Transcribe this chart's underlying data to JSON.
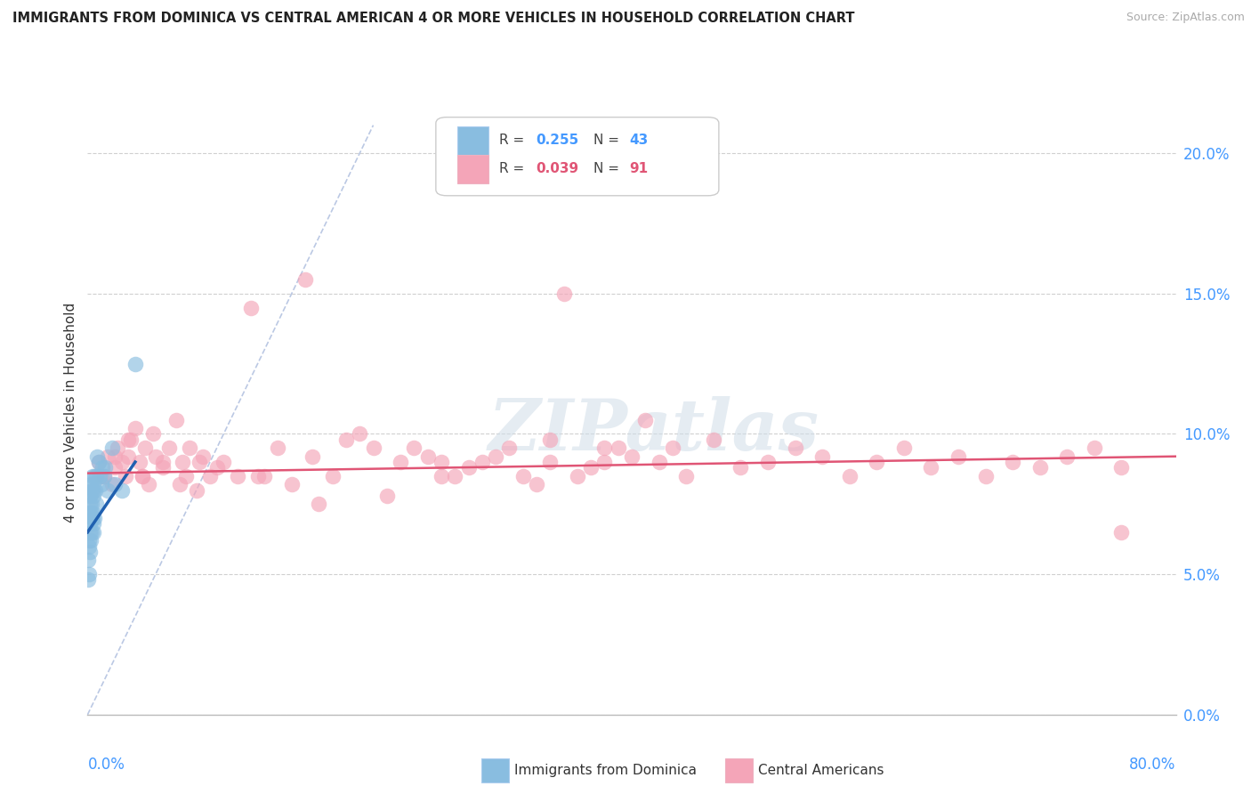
{
  "title": "IMMIGRANTS FROM DOMINICA VS CENTRAL AMERICAN 4 OR MORE VEHICLES IN HOUSEHOLD CORRELATION CHART",
  "source": "Source: ZipAtlas.com",
  "ylabel": "4 or more Vehicles in Household",
  "ytick_labels": [
    "0.0%",
    "5.0%",
    "10.0%",
    "15.0%",
    "20.0%"
  ],
  "ytick_values": [
    0.0,
    5.0,
    10.0,
    15.0,
    20.0
  ],
  "xlim": [
    0.0,
    80.0
  ],
  "ylim": [
    0.0,
    21.5
  ],
  "watermark": "ZIPatlas",
  "background_color": "#ffffff",
  "blue_color": "#89bde0",
  "pink_color": "#f4a5b8",
  "blue_line_color": "#2060b0",
  "pink_line_color": "#e05575",
  "dash_color": "#aabbdd",
  "dominica_x": [
    0.05,
    0.05,
    0.08,
    0.1,
    0.1,
    0.12,
    0.15,
    0.15,
    0.18,
    0.2,
    0.2,
    0.22,
    0.25,
    0.25,
    0.28,
    0.3,
    0.3,
    0.32,
    0.35,
    0.35,
    0.38,
    0.4,
    0.4,
    0.42,
    0.45,
    0.45,
    0.5,
    0.5,
    0.55,
    0.6,
    0.65,
    0.7,
    0.8,
    0.9,
    1.0,
    1.1,
    1.2,
    1.3,
    1.5,
    1.8,
    2.0,
    2.5,
    3.5
  ],
  "dominica_y": [
    5.5,
    4.8,
    6.2,
    5.0,
    7.2,
    6.0,
    6.5,
    7.5,
    5.8,
    6.8,
    7.8,
    6.2,
    7.2,
    8.2,
    7.0,
    8.0,
    6.5,
    7.5,
    8.5,
    7.0,
    7.2,
    8.2,
    6.8,
    7.8,
    8.0,
    6.5,
    8.5,
    7.0,
    8.0,
    8.5,
    7.5,
    9.2,
    9.0,
    8.5,
    8.2,
    8.8,
    8.5,
    8.8,
    8.0,
    9.5,
    8.2,
    8.0,
    12.5
  ],
  "central_x": [
    1.2,
    1.5,
    1.8,
    2.0,
    2.2,
    2.5,
    2.8,
    3.0,
    3.2,
    3.5,
    3.8,
    4.0,
    4.2,
    4.5,
    4.8,
    5.0,
    5.5,
    6.0,
    6.5,
    7.0,
    7.5,
    8.0,
    8.5,
    9.0,
    10.0,
    11.0,
    12.0,
    13.0,
    14.0,
    15.0,
    16.0,
    17.0,
    18.0,
    19.0,
    20.0,
    21.0,
    22.0,
    23.0,
    24.0,
    25.0,
    26.0,
    27.0,
    28.0,
    29.0,
    30.0,
    31.0,
    32.0,
    33.0,
    34.0,
    35.0,
    36.0,
    37.0,
    38.0,
    39.0,
    40.0,
    41.0,
    42.0,
    43.0,
    44.0,
    46.0,
    48.0,
    50.0,
    52.0,
    54.0,
    56.0,
    58.0,
    60.0,
    62.0,
    64.0,
    66.0,
    68.0,
    70.0,
    72.0,
    74.0,
    76.0,
    0.8,
    1.0,
    2.0,
    3.0,
    4.0,
    5.5,
    6.8,
    7.2,
    8.2,
    9.5,
    12.5,
    16.5,
    26.0,
    34.0,
    38.0,
    76.0
  ],
  "central_y": [
    8.5,
    9.2,
    8.2,
    8.8,
    9.5,
    9.0,
    8.5,
    9.2,
    9.8,
    10.2,
    9.0,
    8.5,
    9.5,
    8.2,
    10.0,
    9.2,
    8.8,
    9.5,
    10.5,
    9.0,
    9.5,
    8.0,
    9.2,
    8.5,
    9.0,
    8.5,
    14.5,
    8.5,
    9.5,
    8.2,
    15.5,
    7.5,
    8.5,
    9.8,
    10.0,
    9.5,
    7.8,
    9.0,
    9.5,
    9.2,
    9.0,
    8.5,
    8.8,
    9.0,
    9.2,
    9.5,
    8.5,
    8.2,
    9.8,
    15.0,
    8.5,
    8.8,
    9.0,
    9.5,
    9.2,
    10.5,
    9.0,
    9.5,
    8.5,
    9.8,
    8.8,
    9.0,
    9.5,
    9.2,
    8.5,
    9.0,
    9.5,
    8.8,
    9.2,
    8.5,
    9.0,
    8.8,
    9.2,
    9.5,
    8.8,
    9.0,
    8.5,
    9.2,
    9.8,
    8.5,
    9.0,
    8.2,
    8.5,
    9.0,
    8.8,
    8.5,
    9.2,
    8.5,
    9.0,
    9.5,
    6.5
  ],
  "blue_reg_x0": 0.0,
  "blue_reg_y0": 6.5,
  "blue_reg_x1": 3.5,
  "blue_reg_y1": 9.0,
  "pink_reg_x0": 0.0,
  "pink_reg_y0": 8.6,
  "pink_reg_x1": 80.0,
  "pink_reg_y1": 9.2,
  "dash_x0": 0.0,
  "dash_y0": 0.0,
  "dash_x1": 21.0,
  "dash_y1": 21.0
}
